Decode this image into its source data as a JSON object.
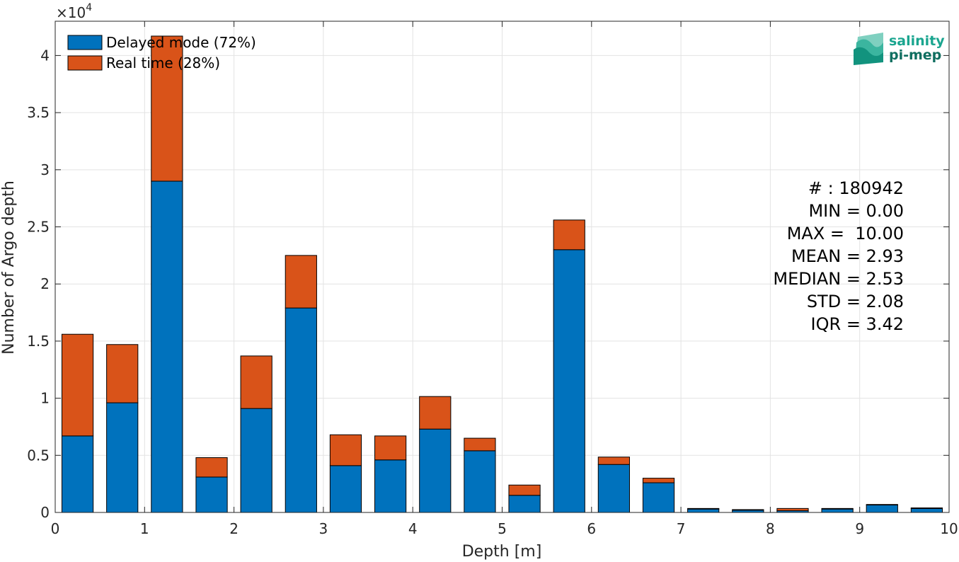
{
  "chart_data": {
    "type": "bar",
    "stacked": true,
    "xlabel": "Depth [m]",
    "ylabel": "Number of Argo depth",
    "xlim": [
      0,
      10
    ],
    "ylim": [
      0,
      43000
    ],
    "y_multiplier_label": "×10",
    "y_multiplier_exponent": "4",
    "xticks": [
      "0",
      "1",
      "2",
      "3",
      "4",
      "5",
      "6",
      "7",
      "8",
      "9",
      "10"
    ],
    "yticks": [
      {
        "value": 0,
        "label": "0"
      },
      {
        "value": 5000,
        "label": "0.5"
      },
      {
        "value": 10000,
        "label": "1"
      },
      {
        "value": 15000,
        "label": "1.5"
      },
      {
        "value": 20000,
        "label": "2"
      },
      {
        "value": 25000,
        "label": "2.5"
      },
      {
        "value": 30000,
        "label": "3"
      },
      {
        "value": 35000,
        "label": "3.5"
      },
      {
        "value": 40000,
        "label": "4"
      }
    ],
    "grid": true,
    "legend_position": "top-left",
    "bin_width": 0.5,
    "x": [
      0.25,
      0.75,
      1.25,
      1.75,
      2.25,
      2.75,
      3.25,
      3.75,
      4.25,
      4.75,
      5.25,
      5.75,
      6.25,
      6.75,
      7.25,
      7.75,
      8.25,
      8.75,
      9.25,
      9.75
    ],
    "series": [
      {
        "name": "Delayed mode (72%)",
        "color": "#0072BD",
        "values": [
          6700,
          9600,
          29000,
          3100,
          9100,
          17900,
          4100,
          4600,
          7300,
          5400,
          1500,
          23000,
          4200,
          2600,
          300,
          200,
          150,
          300,
          650,
          350
        ]
      },
      {
        "name": "Real time (28%)",
        "color": "#D95319",
        "values": [
          8900,
          5100,
          12700,
          1700,
          4600,
          4600,
          2700,
          2100,
          2850,
          1100,
          900,
          2600,
          650,
          400,
          50,
          50,
          200,
          50,
          50,
          50
        ]
      }
    ]
  },
  "stats": {
    "count": "# : 180942",
    "min": "MIN = 0.00",
    "max": "MAX =  10.00",
    "mean": "MEAN = 2.93",
    "median": "MEDIAN = 2.53",
    "std": "STD = 2.08",
    "iqr": "IQR = 3.42"
  },
  "logo": {
    "line1": "salinity",
    "line2": "pi-mep",
    "color": "#1aa58f"
  }
}
